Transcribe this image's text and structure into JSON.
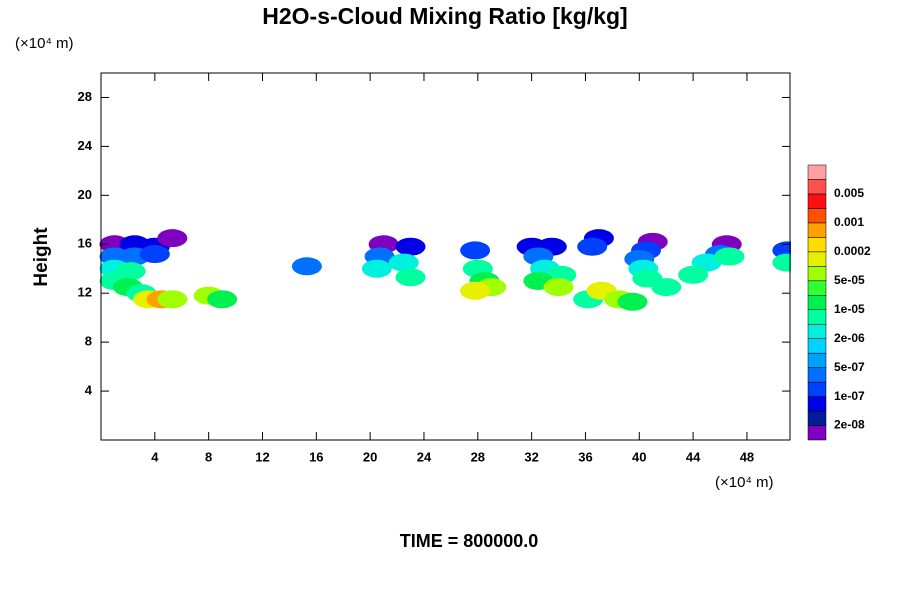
{
  "chart_data": {
    "type": "contour",
    "title": "H2O-s-Cloud Mixing Ratio [kg/kg]",
    "x_unit": "(×10⁴ m)",
    "y_unit": "(×10⁴ m)",
    "ylabel": "Height",
    "footer": "TIME = 800000.0",
    "xlim": [
      0,
      51.2
    ],
    "ylim": [
      0,
      30
    ],
    "xticks": [
      4,
      8,
      12,
      16,
      20,
      24,
      28,
      32,
      36,
      40,
      44,
      48
    ],
    "yticks": [
      4,
      8,
      12,
      16,
      20,
      24,
      28
    ],
    "colorbar_ticks": [
      {
        "value": 2e-08,
        "label": "2e-08"
      },
      {
        "value": 1e-07,
        "label": "1e-07"
      },
      {
        "value": 5e-07,
        "label": "5e-07"
      },
      {
        "value": 2e-06,
        "label": "2e-06"
      },
      {
        "value": 1e-05,
        "label": "1e-05"
      },
      {
        "value": 5e-05,
        "label": "5e-05"
      },
      0.0002,
      0.001,
      0.005
    ],
    "colors": [
      "#7f00bf",
      "#001e9a",
      "#0000e6",
      "#0040ff",
      "#0070ff",
      "#00a0ff",
      "#00d2ff",
      "#00f0e0",
      "#00ffa0",
      "#00f050",
      "#30ff30",
      "#a0ff00",
      "#e6f000",
      "#ffdd00",
      "#ffa000",
      "#ff5000",
      "#ff1010",
      "#ff5050",
      "#ffa0a0"
    ],
    "cells": [
      [
        1,
        16,
        2e-08
      ],
      [
        2.5,
        16,
        5e-08
      ],
      [
        4,
        15.8,
        5e-08
      ],
      [
        5.3,
        16.5,
        2e-08
      ],
      [
        1,
        15,
        5e-07
      ],
      [
        2.5,
        15,
        3e-07
      ],
      [
        4,
        15.2,
        1e-07
      ],
      [
        1,
        14,
        2e-06
      ],
      [
        2.2,
        13.8,
        5e-06
      ],
      [
        1,
        13,
        1e-05
      ],
      [
        2,
        12.5,
        2e-05
      ],
      [
        3,
        12,
        1e-05
      ],
      [
        3.5,
        11.5,
        0.0001
      ],
      [
        4.5,
        11.5,
        0.0005
      ],
      [
        5.3,
        11.5,
        5e-05
      ],
      [
        8,
        11.8,
        5e-05
      ],
      [
        9,
        11.5,
        2e-05
      ],
      [
        15.3,
        14.2,
        5e-07
      ],
      [
        21,
        16,
        2e-08
      ],
      [
        23,
        15.8,
        5e-08
      ],
      [
        20.7,
        15,
        5e-07
      ],
      [
        22.5,
        14.5,
        2e-06
      ],
      [
        20.5,
        14,
        2e-06
      ],
      [
        23,
        13.3,
        5e-06
      ],
      [
        27.8,
        15.5,
        1e-07
      ],
      [
        28,
        14,
        5e-06
      ],
      [
        28.5,
        13,
        2e-05
      ],
      [
        29,
        12.5,
        5e-05
      ],
      [
        27.8,
        12.2,
        0.0002
      ],
      [
        32,
        15.8,
        5e-08
      ],
      [
        33.5,
        15.8,
        5e-08
      ],
      [
        32.5,
        15,
        5e-07
      ],
      [
        33,
        14,
        2e-06
      ],
      [
        34.2,
        13.5,
        1e-05
      ],
      [
        32.5,
        13,
        2e-05
      ],
      [
        34,
        12.5,
        5e-05
      ],
      [
        37,
        16.5,
        5e-08
      ],
      [
        36.5,
        15.8,
        2e-07
      ],
      [
        36.2,
        11.5,
        1e-05
      ],
      [
        37.2,
        12.2,
        0.0001
      ],
      [
        38.5,
        11.5,
        5e-05
      ],
      [
        39.5,
        11.3,
        2e-05
      ],
      [
        41,
        16.2,
        2e-08
      ],
      [
        40.5,
        15.5,
        1e-07
      ],
      [
        40,
        14.8,
        5e-07
      ],
      [
        40.3,
        14,
        2e-06
      ],
      [
        40.6,
        13.2,
        1e-05
      ],
      [
        42,
        12.5,
        5e-06
      ],
      [
        46.5,
        16,
        2e-08
      ],
      [
        46,
        15.2,
        5e-07
      ],
      [
        45,
        14.5,
        2e-06
      ],
      [
        44,
        13.5,
        1e-05
      ],
      [
        46.7,
        15,
        1e-05
      ],
      [
        51,
        15.5,
        1e-07
      ],
      [
        51,
        14.5,
        5e-06
      ]
    ]
  }
}
